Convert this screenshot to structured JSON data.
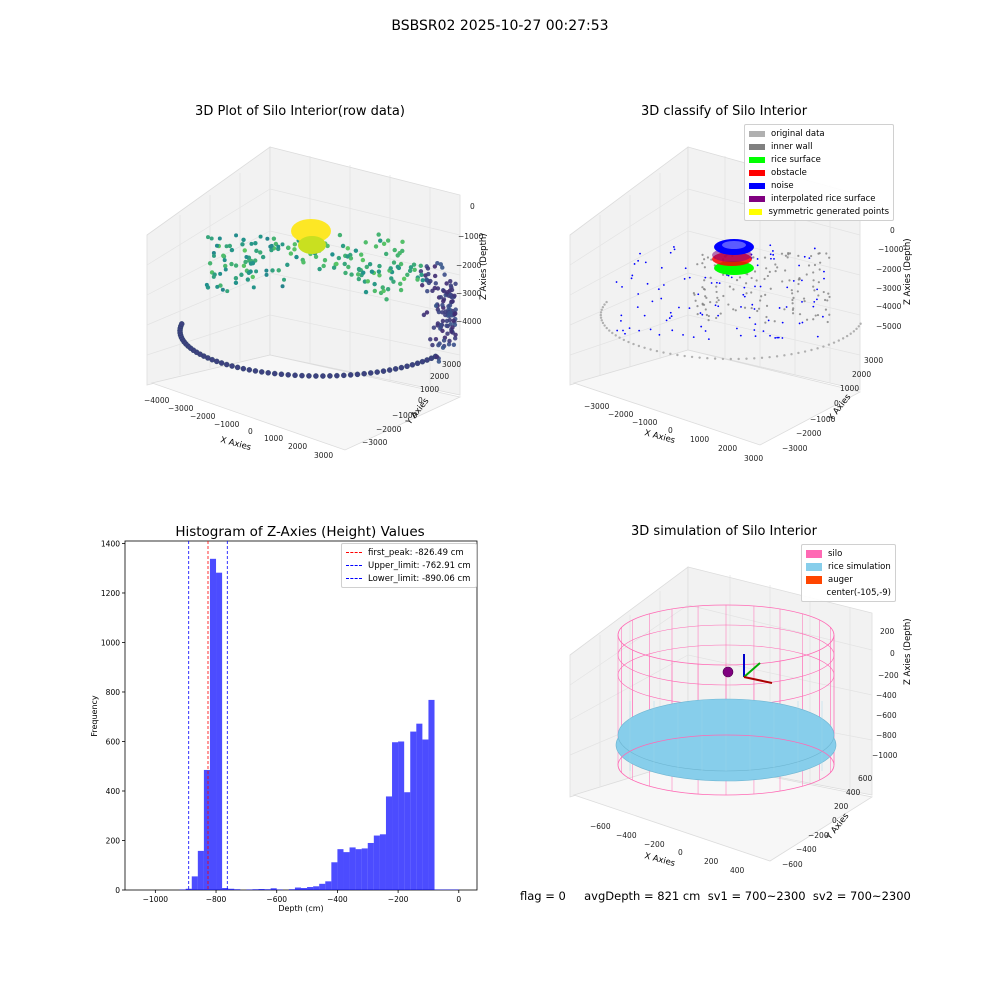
{
  "figure_title": "BSBSR02 2025-10-27 00:27:53",
  "status": {
    "text": "flag = 0     avgDepth = 821 cm  sv1 = 700~2300  sv2 = 700~2300"
  },
  "chart_data": [
    {
      "type": "scatter",
      "projection": "3d",
      "title": "3D Plot of Silo Interior(row data)",
      "xlabel": "X Axies",
      "ylabel": "Y Axies",
      "zlabel": "Z Axies (Depth)",
      "xticks": [
        "−4000",
        "−3000",
        "−2000",
        "−1000",
        "0",
        "1000",
        "2000",
        "3000"
      ],
      "yticks": [
        "−3000",
        "−2000",
        "−1000",
        "0",
        "1000",
        "2000",
        "3000"
      ],
      "zticks": [
        "0",
        "−1000",
        "−2000",
        "−3000",
        "−4000"
      ],
      "colormap": [
        "#440154",
        "#3b528b",
        "#21918c",
        "#5ec962",
        "#fde725"
      ],
      "grid": true
    },
    {
      "type": "scatter",
      "projection": "3d",
      "title": "3D classify of Silo Interior",
      "xlabel": "X Axies",
      "ylabel": "Y Axies",
      "zlabel": "Z Axies (Depth)",
      "xticks": [
        "−3000",
        "−2000",
        "−1000",
        "0",
        "1000",
        "2000",
        "3000"
      ],
      "yticks": [
        "−3000",
        "−2000",
        "−1000",
        "0",
        "1000",
        "2000",
        "3000"
      ],
      "zticks": [
        "0",
        "−1000",
        "−2000",
        "−3000",
        "−4000",
        "−5000"
      ],
      "legend": [
        {
          "label": "original data",
          "color": "#b0b0b0"
        },
        {
          "label": "inner wall",
          "color": "#808080"
        },
        {
          "label": "rice surface",
          "color": "#00ff00"
        },
        {
          "label": "obstacle",
          "color": "#ff0000"
        },
        {
          "label": "noise",
          "color": "#0000ff"
        },
        {
          "label": "interpolated rice surface",
          "color": "#800080"
        },
        {
          "label": "symmetric generated points",
          "color": "#ffff00"
        }
      ],
      "legend_position": "top-right",
      "grid": true
    },
    {
      "type": "bar",
      "title": "Histogram of Z-Axies (Height) Values",
      "xlabel": "Depth (cm)",
      "ylabel": "Frequency",
      "xlim": [
        -1100,
        60
      ],
      "ylim": [
        0,
        1410
      ],
      "xticks": [
        -1000,
        -800,
        -600,
        -400,
        -200,
        0
      ],
      "xtick_labels": [
        "−1000",
        "−800",
        "−600",
        "−400",
        "−200",
        "0"
      ],
      "yticks": [
        0,
        200,
        400,
        600,
        800,
        1000,
        1200,
        1400
      ],
      "bin_width": 20,
      "bin_starts": [
        -920,
        -900,
        -880,
        -860,
        -840,
        -820,
        -800,
        -780,
        -760,
        -740,
        -700,
        -680,
        -660,
        -640,
        -620,
        -600,
        -560,
        -540,
        -520,
        -500,
        -480,
        -460,
        -440,
        -420,
        -400,
        -380,
        -360,
        -340,
        -320,
        -300,
        -280,
        -260,
        -240,
        -220,
        -200,
        -180,
        -160,
        -140,
        -120,
        -100,
        -80,
        -60,
        -40,
        -20
      ],
      "counts": [
        2,
        5,
        55,
        158,
        485,
        1338,
        1282,
        8,
        5,
        3,
        2,
        3,
        4,
        3,
        7,
        2,
        3,
        10,
        8,
        12,
        15,
        25,
        35,
        112,
        165,
        153,
        172,
        165,
        168,
        190,
        220,
        225,
        378,
        597,
        600,
        395,
        640,
        672,
        608,
        768,
        2,
        2,
        2,
        2
      ],
      "bar_color": "#0000ff",
      "vlines": [
        {
          "label": "first_peak: -826.49 cm",
          "x": -826.49,
          "color": "#ff0000"
        },
        {
          "label": "Upper_limit: -762.91 cm",
          "x": -762.91,
          "color": "#0000ff"
        },
        {
          "label": "Lower_limit: -890.06 cm",
          "x": -890.06,
          "color": "#0000ff"
        }
      ],
      "legend_position": "top-right",
      "grid": false
    },
    {
      "type": "scatter",
      "projection": "3d",
      "title": "3D simulation of Silo Interior",
      "xlabel": "X Axies",
      "ylabel": "Y Axies",
      "zlabel": "Z Axies (Depth)",
      "xticks": [
        "−600",
        "−400",
        "−200",
        "0",
        "200",
        "400"
      ],
      "yticks": [
        "−600",
        "−400",
        "−200",
        "0",
        "200",
        "400",
        "600"
      ],
      "zticks": [
        "200",
        "0",
        "−200",
        "−400",
        "−600",
        "−800",
        "−1000"
      ],
      "legend": [
        {
          "label": "silo",
          "color": "#ff69b4"
        },
        {
          "label": "rice simulation",
          "color": "#87ceeb"
        },
        {
          "label": "auger",
          "color": "#ff4500"
        },
        {
          "label": "center(-105,-9)",
          "color": "none"
        }
      ],
      "legend_position": "top-right",
      "grid": true
    }
  ]
}
